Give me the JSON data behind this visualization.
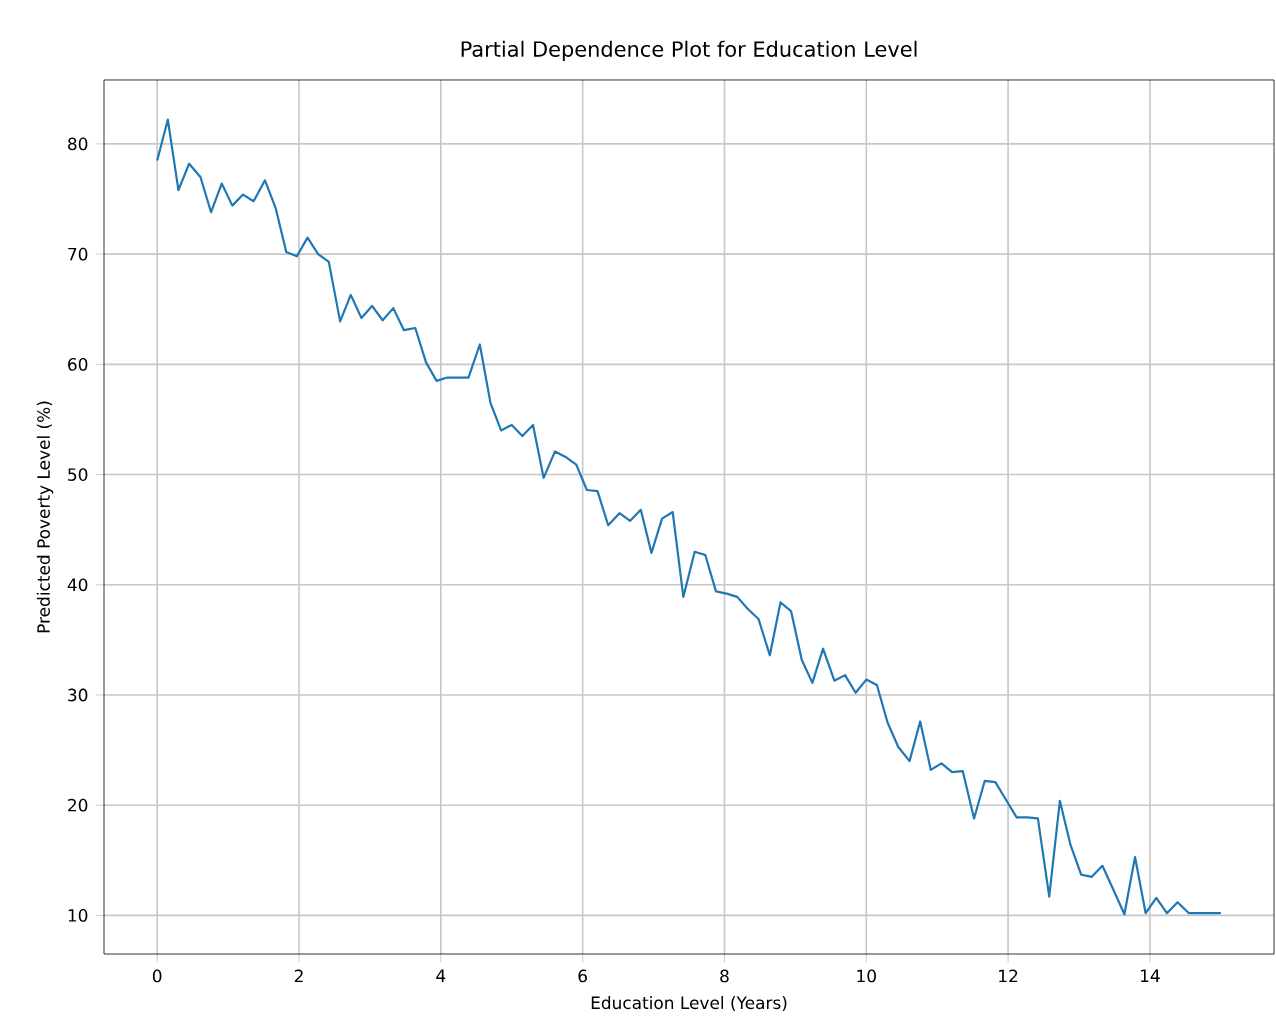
{
  "chart_data": {
    "type": "line",
    "title": "Partial Dependence Plot for Education Level",
    "xlabel": "Education Level (Years)",
    "ylabel": "Predicted Poverty Level (%)",
    "xlim": [
      -0.75,
      15.75
    ],
    "ylim": [
      6.5,
      85.8
    ],
    "xticks": [
      0,
      2,
      4,
      6,
      8,
      10,
      12,
      14
    ],
    "yticks": [
      10,
      20,
      30,
      40,
      50,
      60,
      70,
      80
    ],
    "grid": true,
    "series": [
      {
        "color": "#1f77b4",
        "x": [
          0,
          0.15,
          0.3,
          0.45,
          0.61,
          0.76,
          0.91,
          1.06,
          1.21,
          1.36,
          1.52,
          1.67,
          1.82,
          1.97,
          2.12,
          2.27,
          2.42,
          2.58,
          2.73,
          2.88,
          3.03,
          3.18,
          3.33,
          3.48,
          3.64,
          3.79,
          3.94,
          4.09,
          4.24,
          4.39,
          4.55,
          4.7,
          4.85,
          5.0,
          5.15,
          5.3,
          5.45,
          5.61,
          5.76,
          5.91,
          6.06,
          6.21,
          6.36,
          6.52,
          6.67,
          6.82,
          6.97,
          7.12,
          7.27,
          7.42,
          7.58,
          7.73,
          7.88,
          8.03,
          8.18,
          8.33,
          8.48,
          8.64,
          8.79,
          8.94,
          9.09,
          9.24,
          9.39,
          9.55,
          9.7,
          9.85,
          10.0,
          10.15,
          10.3,
          10.45,
          10.61,
          10.76,
          10.91,
          11.06,
          11.21,
          11.36,
          11.52,
          11.67,
          11.82,
          11.97,
          12.12,
          12.27,
          12.42,
          12.58,
          12.73,
          12.88,
          13.03,
          13.18,
          13.33,
          13.48,
          13.64,
          13.79,
          13.94,
          14.09,
          14.24,
          14.39,
          14.55,
          14.7,
          14.85,
          15.0
        ],
        "values": [
          78.5,
          82.2,
          75.8,
          78.2,
          77,
          73.8,
          76.4,
          74.4,
          75.4,
          74.8,
          76.7,
          74.2,
          70.2,
          69.8,
          71.5,
          70,
          69.3,
          63.9,
          66.3,
          64.2,
          65.3,
          64,
          65.1,
          63.1,
          63.3,
          60.2,
          58.5,
          58.8,
          58.8,
          58.8,
          61.8,
          56.5,
          54,
          54.5,
          53.5,
          54.5,
          49.7,
          52.1,
          51.6,
          50.9,
          48.6,
          48.5,
          45.4,
          46.5,
          45.8,
          46.8,
          42.9,
          46,
          46.6,
          38.9,
          43,
          42.7,
          39.4,
          39.2,
          38.9,
          37.8,
          36.9,
          33.6,
          38.4,
          37.6,
          33.2,
          31.1,
          34.2,
          31.3,
          31.8,
          30.2,
          31.4,
          30.9,
          27.5,
          25.3,
          24,
          27.6,
          23.2,
          23.8,
          23,
          23.1,
          18.8,
          22.2,
          22.1,
          20.5,
          18.9,
          18.9,
          18.8,
          11.7,
          20.4,
          16.4,
          13.7,
          13.5,
          14.5,
          12.4,
          10.1,
          15.3,
          10.2,
          11.6,
          10.2,
          11.2,
          10.2,
          10.2,
          10.2,
          10.2
        ]
      }
    ]
  }
}
